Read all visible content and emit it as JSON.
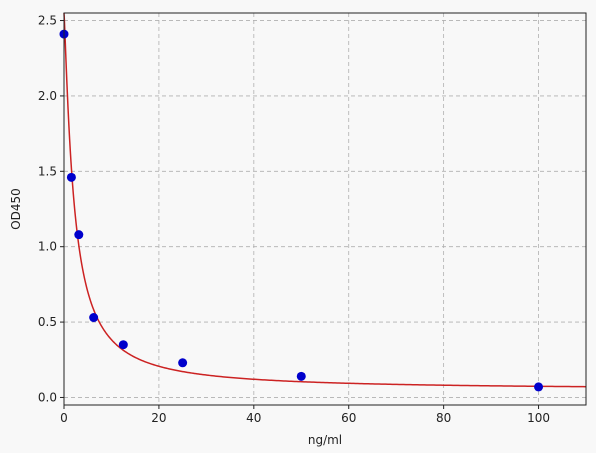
{
  "chart_data": {
    "type": "scatter",
    "xlabel": "ng/ml",
    "ylabel": "OD450",
    "xlim": [
      0,
      110
    ],
    "ylim": [
      -0.05,
      2.55
    ],
    "x_ticks": [
      0,
      20,
      40,
      60,
      80,
      100
    ],
    "y_ticks": [
      0.0,
      0.5,
      1.0,
      1.5,
      2.0,
      2.5
    ],
    "x_tick_labels": [
      "0",
      "20",
      "40",
      "60",
      "80",
      "100"
    ],
    "y_tick_labels": [
      "0.0",
      "0.5",
      "1.0",
      "1.5",
      "2.0",
      "2.5"
    ],
    "grid": true,
    "points": {
      "x": [
        0,
        1.56,
        3.12,
        6.25,
        12.5,
        25,
        50,
        100
      ],
      "y": [
        2.41,
        1.46,
        1.08,
        0.53,
        0.35,
        0.23,
        0.14,
        0.07
      ]
    },
    "fit_curve": {
      "type": "4PL",
      "a": 2.55,
      "b": 1.2,
      "c": 2.1,
      "d": 0.05
    },
    "colors": {
      "points": "#0000cc",
      "curve": "#cc2222",
      "grid": "#b0b0b0",
      "background": "#f8f8f8"
    }
  }
}
